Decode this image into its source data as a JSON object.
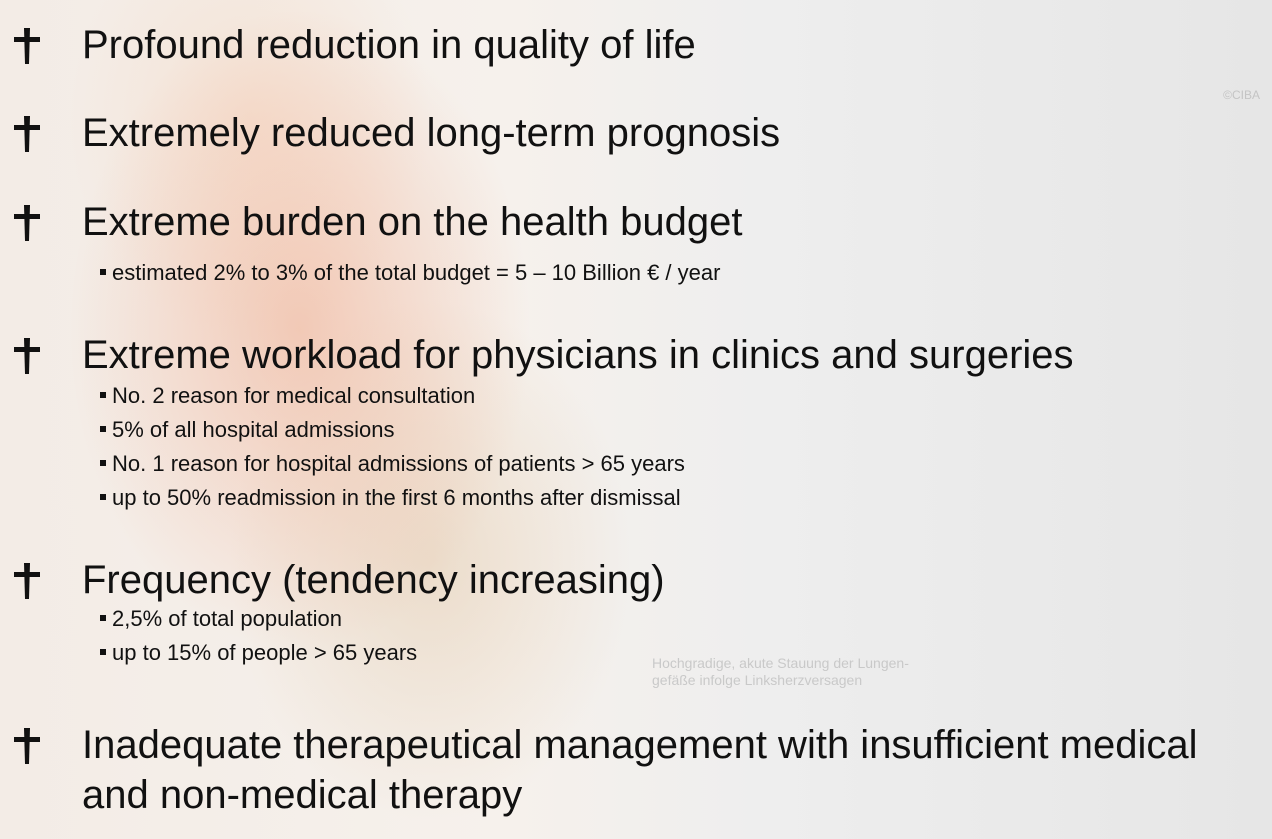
{
  "slide": {
    "items": [
      {
        "heading": "Profound reduction in quality of life",
        "subitems": []
      },
      {
        "heading": "Extremely reduced long-term prognosis",
        "subitems": []
      },
      {
        "heading": "Extreme burden on the health budget",
        "subitems": [
          "estimated 2% to 3% of the total budget = 5 – 10 Billion € / year"
        ]
      },
      {
        "heading": "Extreme workload for physicians in clinics and surgeries",
        "subitems": [
          "No. 2 reason for medical consultation",
          "5% of all hospital admissions",
          "No. 1 reason for hospital admissions of patients > 65 years",
          "up to 50% readmission in the first 6 months after dismissal"
        ]
      },
      {
        "heading": "Frequency (tendency increasing)",
        "subitems": [
          "2,5% of total population",
          "up to 15% of people > 65 years"
        ]
      },
      {
        "heading": "Inadequate therapeutical management with insufficient medical and non-medical therapy",
        "subitems": []
      }
    ],
    "caption": [
      "Hochgradige, akute Stauung der Lungen-",
      "gefäße infolge Linksherzversagen"
    ],
    "copyright": "©CIBA"
  }
}
